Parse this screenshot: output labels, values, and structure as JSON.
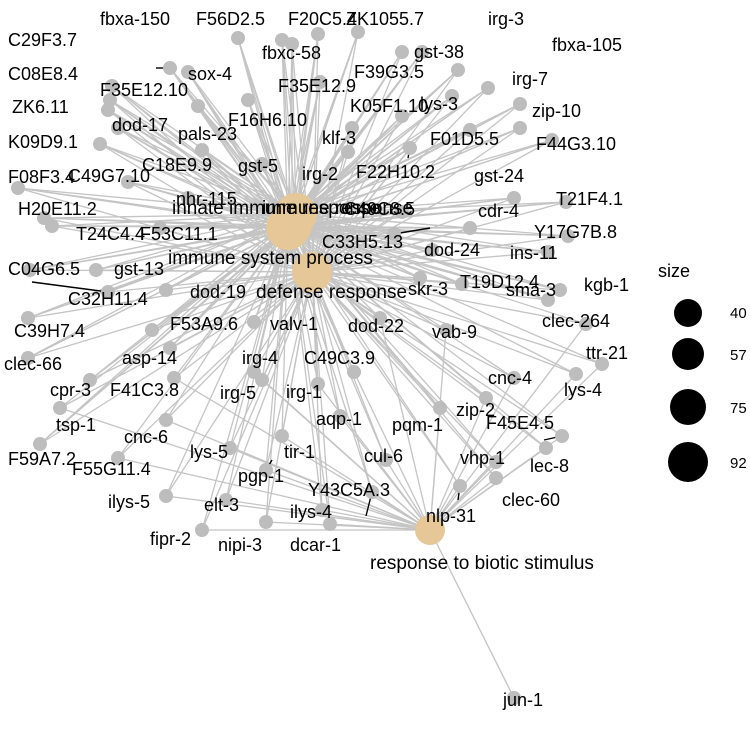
{
  "colors": {
    "edge": "#c4c4c4",
    "gene_node": "#bdbdbd",
    "category_node": "#e6c797",
    "legend_circle": "#000000",
    "leader": "#000000"
  },
  "categories": [
    {
      "id": "innate",
      "label": "innate immune response"
    },
    {
      "id": "immune_response",
      "label": "immune response"
    },
    {
      "id": "immune_system",
      "label": "immune system process"
    },
    {
      "id": "defense",
      "label": "defense response"
    },
    {
      "id": "biotic",
      "label": "response to biotic stimulus"
    }
  ],
  "genes": [
    "fbxa-150",
    "F56D2.5",
    "F20C5.4",
    "ZK1055.7",
    "irg-3",
    "C29F3.7",
    "fbxc-58",
    "gst-38",
    "fbxa-105",
    "C08E8.4",
    "sox-4",
    "F39G3.5",
    "F35E12.10",
    "F35E12.9",
    "irg-7",
    "ZK6.11",
    "lys-3",
    "zip-10",
    "K05F1.10",
    "F16H6.10",
    "dod-17",
    "pals-23",
    "klf-3",
    "K09D9.1",
    "F01D5.5",
    "F44G3.10",
    "C18E9.9",
    "gst-5",
    "irg-2",
    "F22H10.2",
    "F08F3.4",
    "C49G7.10",
    "nhr-115",
    "gst-24",
    "C49C8.5",
    "T21F4.1",
    "H20E11.2",
    "cdr-4",
    "T24C4.4",
    "F53C11.1",
    "C33H5.13",
    "Y17G7B.8",
    "dod-24",
    "ins-11",
    "C04G6.5",
    "gst-13",
    "skr-3",
    "T19D12.4",
    "kgb-1",
    "C32H11.4",
    "dod-19",
    "sma-3",
    "clec-264",
    "C39H7.4",
    "F53A9.6",
    "valv-1",
    "dod-22",
    "vab-9",
    "clec-66",
    "ttr-21",
    "asp-14",
    "irg-4",
    "C49C3.9",
    "cpr-3",
    "F41C3.8",
    "irg-5",
    "irg-1",
    "cnc-4",
    "lys-4",
    "tsp-1",
    "aqp-1",
    "pqm-1",
    "zip-2",
    "cnc-6",
    "F45E4.5",
    "F59A7.2",
    "F55G11.4",
    "lys-5",
    "tir-1",
    "cul-6",
    "vhp-1",
    "lec-8",
    "pgp-1",
    "Y43C5A.3",
    "ilys-5",
    "elt-3",
    "clec-60",
    "ilys-4",
    "nlp-31",
    "fipr-2",
    "nipi-3",
    "dcar-1",
    "jun-1"
  ],
  "legend": {
    "title": "size",
    "labels": [
      "40",
      "57",
      "75",
      "92"
    ]
  }
}
